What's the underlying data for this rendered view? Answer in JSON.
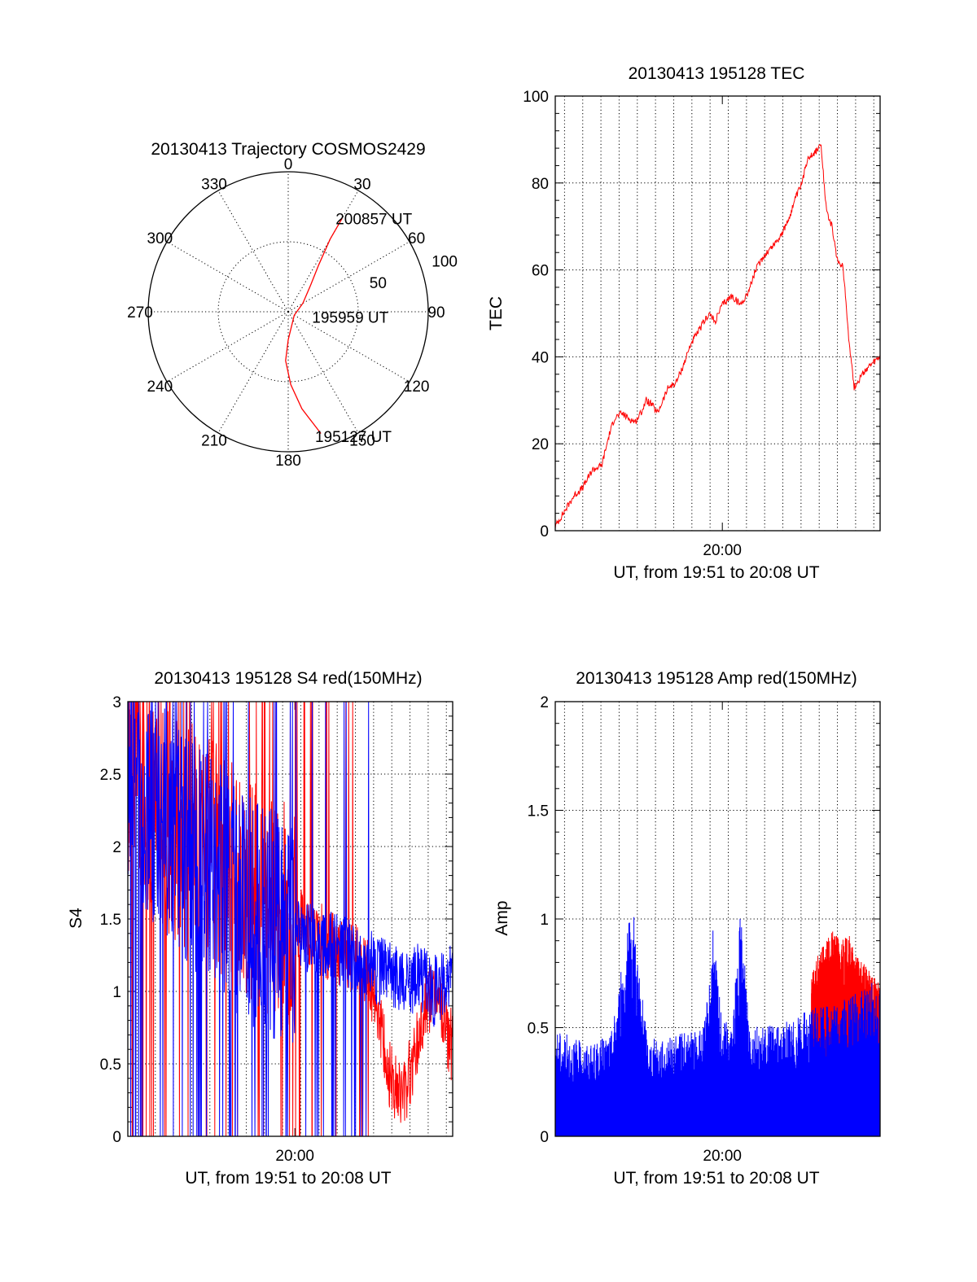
{
  "colors": {
    "red": "#ff0000",
    "blue": "#0000ff",
    "axis": "#000000"
  },
  "chart_data": [
    {
      "type": "polar",
      "title": "20130413 Trajectory COSMOS2429",
      "angle_labels": [
        "0",
        "30",
        "60",
        "90",
        "120",
        "150",
        "180",
        "210",
        "240",
        "270",
        "300",
        "330"
      ],
      "angles_deg": [
        0,
        30,
        60,
        90,
        120,
        150,
        180,
        210,
        240,
        270,
        300,
        330
      ],
      "radial_labels": [
        "50",
        "100"
      ],
      "radial_values": [
        50,
        100
      ],
      "trajectory": {
        "color": "red",
        "points": [
          [
            165,
            90
          ],
          [
            172,
            70
          ],
          [
            178,
            52
          ],
          [
            183,
            35
          ],
          [
            180,
            20
          ],
          [
            120,
            5
          ],
          [
            60,
            12
          ],
          [
            40,
            25
          ],
          [
            33,
            40
          ],
          [
            30,
            60
          ],
          [
            30,
            77
          ]
        ]
      },
      "annotations": [
        {
          "text": "200857 UT",
          "azimuth": 30,
          "radius": 77
        },
        {
          "text": "195959 UT",
          "azimuth": 100,
          "radius": 22
        },
        {
          "text": "195127 UT",
          "azimuth": 165,
          "radius": 92
        }
      ]
    },
    {
      "type": "line",
      "title": "20130413 195128 TEC",
      "ylabel": "TEC",
      "xlabel": "UT, from 19:51 to 20:08 UT",
      "ylim": [
        0,
        100
      ],
      "yticks": [
        0,
        20,
        40,
        60,
        80,
        100
      ],
      "xlim_min": [
        0,
        17.5
      ],
      "xtick_label": "20:00",
      "series": [
        {
          "color": "red",
          "x": [
            0,
            1,
            1.5,
            2,
            2.5,
            2.9,
            3.2,
            3.6,
            3.9,
            4.3,
            4.6,
            4.9,
            5.2,
            5.5,
            5.8,
            6.1,
            6.5,
            6.9,
            7.3,
            7.6,
            8,
            8.3,
            8.6,
            9,
            9.5,
            10,
            10.4,
            10.8,
            11.2,
            11.6,
            12,
            12.3,
            12.6,
            12.9,
            13.3,
            13.6,
            14,
            14.3,
            14.6,
            14.9,
            15.2,
            15.5,
            15.8,
            16.1,
            16.4,
            16.7,
            17,
            17.5
          ],
          "y": [
            1,
            8,
            10,
            14,
            15,
            22,
            26,
            27,
            26,
            25,
            27,
            30,
            29,
            27,
            30,
            33,
            34,
            38,
            43,
            45,
            48,
            50,
            48,
            52,
            54,
            52,
            55,
            60,
            63,
            65,
            67,
            69,
            72,
            76,
            80,
            86,
            87,
            89,
            74,
            70,
            62,
            61,
            45,
            33,
            35,
            37,
            38,
            40
          ]
        }
      ]
    },
    {
      "type": "line",
      "title": "20130413 195128 S4 red(150MHz)",
      "ylabel": "S4",
      "xlabel": "UT, from 19:51 to 20:08 UT",
      "ylim": [
        0,
        3
      ],
      "yticks": [
        0,
        0.5,
        1,
        1.5,
        2,
        2.5,
        3
      ],
      "ytick_labels": [
        "0",
        "0.5",
        "1",
        "1.5",
        "2",
        "2.5",
        "3"
      ],
      "xlim_min": [
        0,
        17.5
      ],
      "xtick_label": "20:00",
      "series": [
        {
          "color": "red",
          "x": [
            0,
            1,
            2,
            3,
            4,
            5,
            6,
            7,
            8,
            9,
            10,
            11,
            12,
            12.5,
            13,
            13.5,
            14,
            14.5,
            15,
            15.5,
            16,
            16.5,
            17,
            17.5
          ],
          "y": [
            2.6,
            2.4,
            2.2,
            2.1,
            2.0,
            1.9,
            1.8,
            1.7,
            1.6,
            1.5,
            1.4,
            1.3,
            1.25,
            1.2,
            1.1,
            0.9,
            0.45,
            0.3,
            0.35,
            0.6,
            0.9,
            1.0,
            0.8,
            0.6
          ]
        },
        {
          "color": "blue",
          "x": [
            0,
            1,
            2,
            3,
            4,
            5,
            6,
            7,
            8,
            9,
            10,
            11,
            12,
            12.5,
            13,
            13.5,
            14,
            14.5,
            15,
            15.5,
            16,
            16.5,
            17,
            17.5
          ],
          "y": [
            2.5,
            2.3,
            2.2,
            2.0,
            1.9,
            1.8,
            1.6,
            1.5,
            1.45,
            1.4,
            1.35,
            1.3,
            1.25,
            1.2,
            1.2,
            1.15,
            1.1,
            1.1,
            1.05,
            1.1,
            1.05,
            1.0,
            1.05,
            1.1
          ]
        }
      ]
    },
    {
      "type": "bar",
      "title": "20130413 195128 Amp red(150MHz)",
      "ylabel": "Amp",
      "xlabel": "UT, from 19:51 to 20:08 UT",
      "ylim": [
        0,
        2
      ],
      "yticks": [
        0,
        0.5,
        1,
        1.5,
        2
      ],
      "ytick_labels": [
        "0",
        "0.5",
        "1",
        "1.5",
        "2"
      ],
      "xlim_min": [
        0,
        17.5
      ],
      "xtick_label": "20:00",
      "series": [
        {
          "color": "red",
          "x": [
            13.8,
            14.2,
            14.6,
            15,
            15.4,
            15.8,
            16.2,
            16.6,
            17,
            17.5
          ],
          "y": [
            0.75,
            0.85,
            0.9,
            0.95,
            0.9,
            0.95,
            0.85,
            0.8,
            0.75,
            0.7
          ]
        },
        {
          "color": "blue",
          "x": [
            0,
            1,
            2,
            3,
            3.8,
            4.2,
            4.6,
            5,
            6,
            7,
            8,
            8.5,
            9,
            9.5,
            10,
            10.5,
            11,
            12,
            13,
            14,
            15,
            16,
            17,
            17.5
          ],
          "y": [
            0.5,
            0.45,
            0.42,
            0.48,
            0.9,
            1.1,
            0.7,
            0.45,
            0.45,
            0.48,
            0.5,
            0.95,
            0.55,
            0.5,
            1.05,
            0.55,
            0.5,
            0.52,
            0.55,
            0.6,
            0.62,
            0.65,
            0.72,
            0.7
          ]
        }
      ]
    }
  ]
}
